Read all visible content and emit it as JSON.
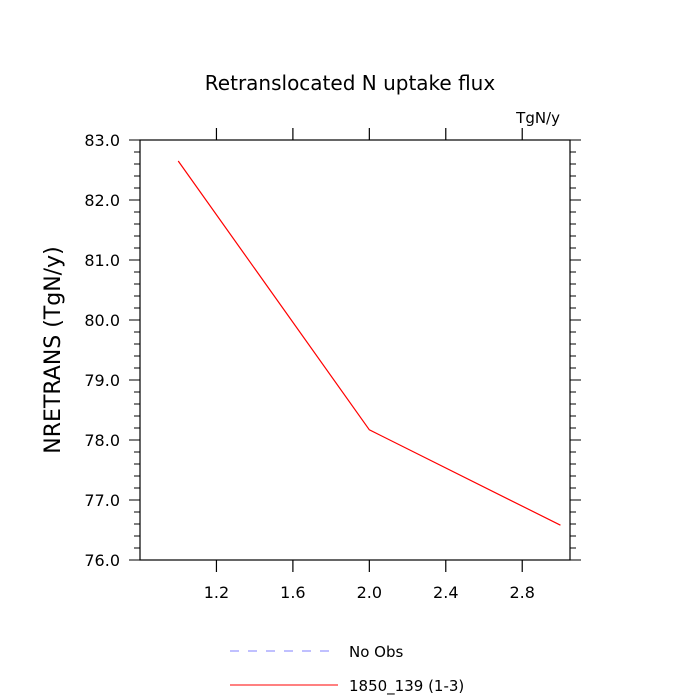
{
  "chart_data": {
    "type": "line",
    "title": "Retranslocated N uptake flux",
    "units_label": "TgN/y",
    "ylabel": "NRETRANS  (TgN/y)",
    "xlabel": "",
    "xlim": [
      0.8,
      3.05
    ],
    "ylim": [
      76.0,
      83.0
    ],
    "x_ticks": [
      1.2,
      1.6,
      2.0,
      2.4,
      2.8
    ],
    "x_tick_labels": [
      "1.2",
      "1.6",
      "2.0",
      "2.4",
      "2.8"
    ],
    "y_ticks": [
      76.0,
      77.0,
      78.0,
      79.0,
      80.0,
      81.0,
      82.0,
      83.0
    ],
    "y_tick_labels": [
      "76.0",
      "77.0",
      "78.0",
      "79.0",
      "80.0",
      "81.0",
      "82.0",
      "83.0"
    ],
    "grid": false,
    "legend_position": "bottom-center",
    "series": [
      {
        "name": "1850_139 (1-3)",
        "color": "#ff0000",
        "dash": "solid",
        "x": [
          1.0,
          2.0,
          3.0
        ],
        "y": [
          82.65,
          78.17,
          76.58
        ]
      }
    ],
    "legend": [
      {
        "label": "No Obs",
        "color": "#8080ff",
        "dash": "dashed"
      },
      {
        "label": "1850_139 (1-3)",
        "color": "#ff0000",
        "dash": "solid"
      }
    ]
  }
}
